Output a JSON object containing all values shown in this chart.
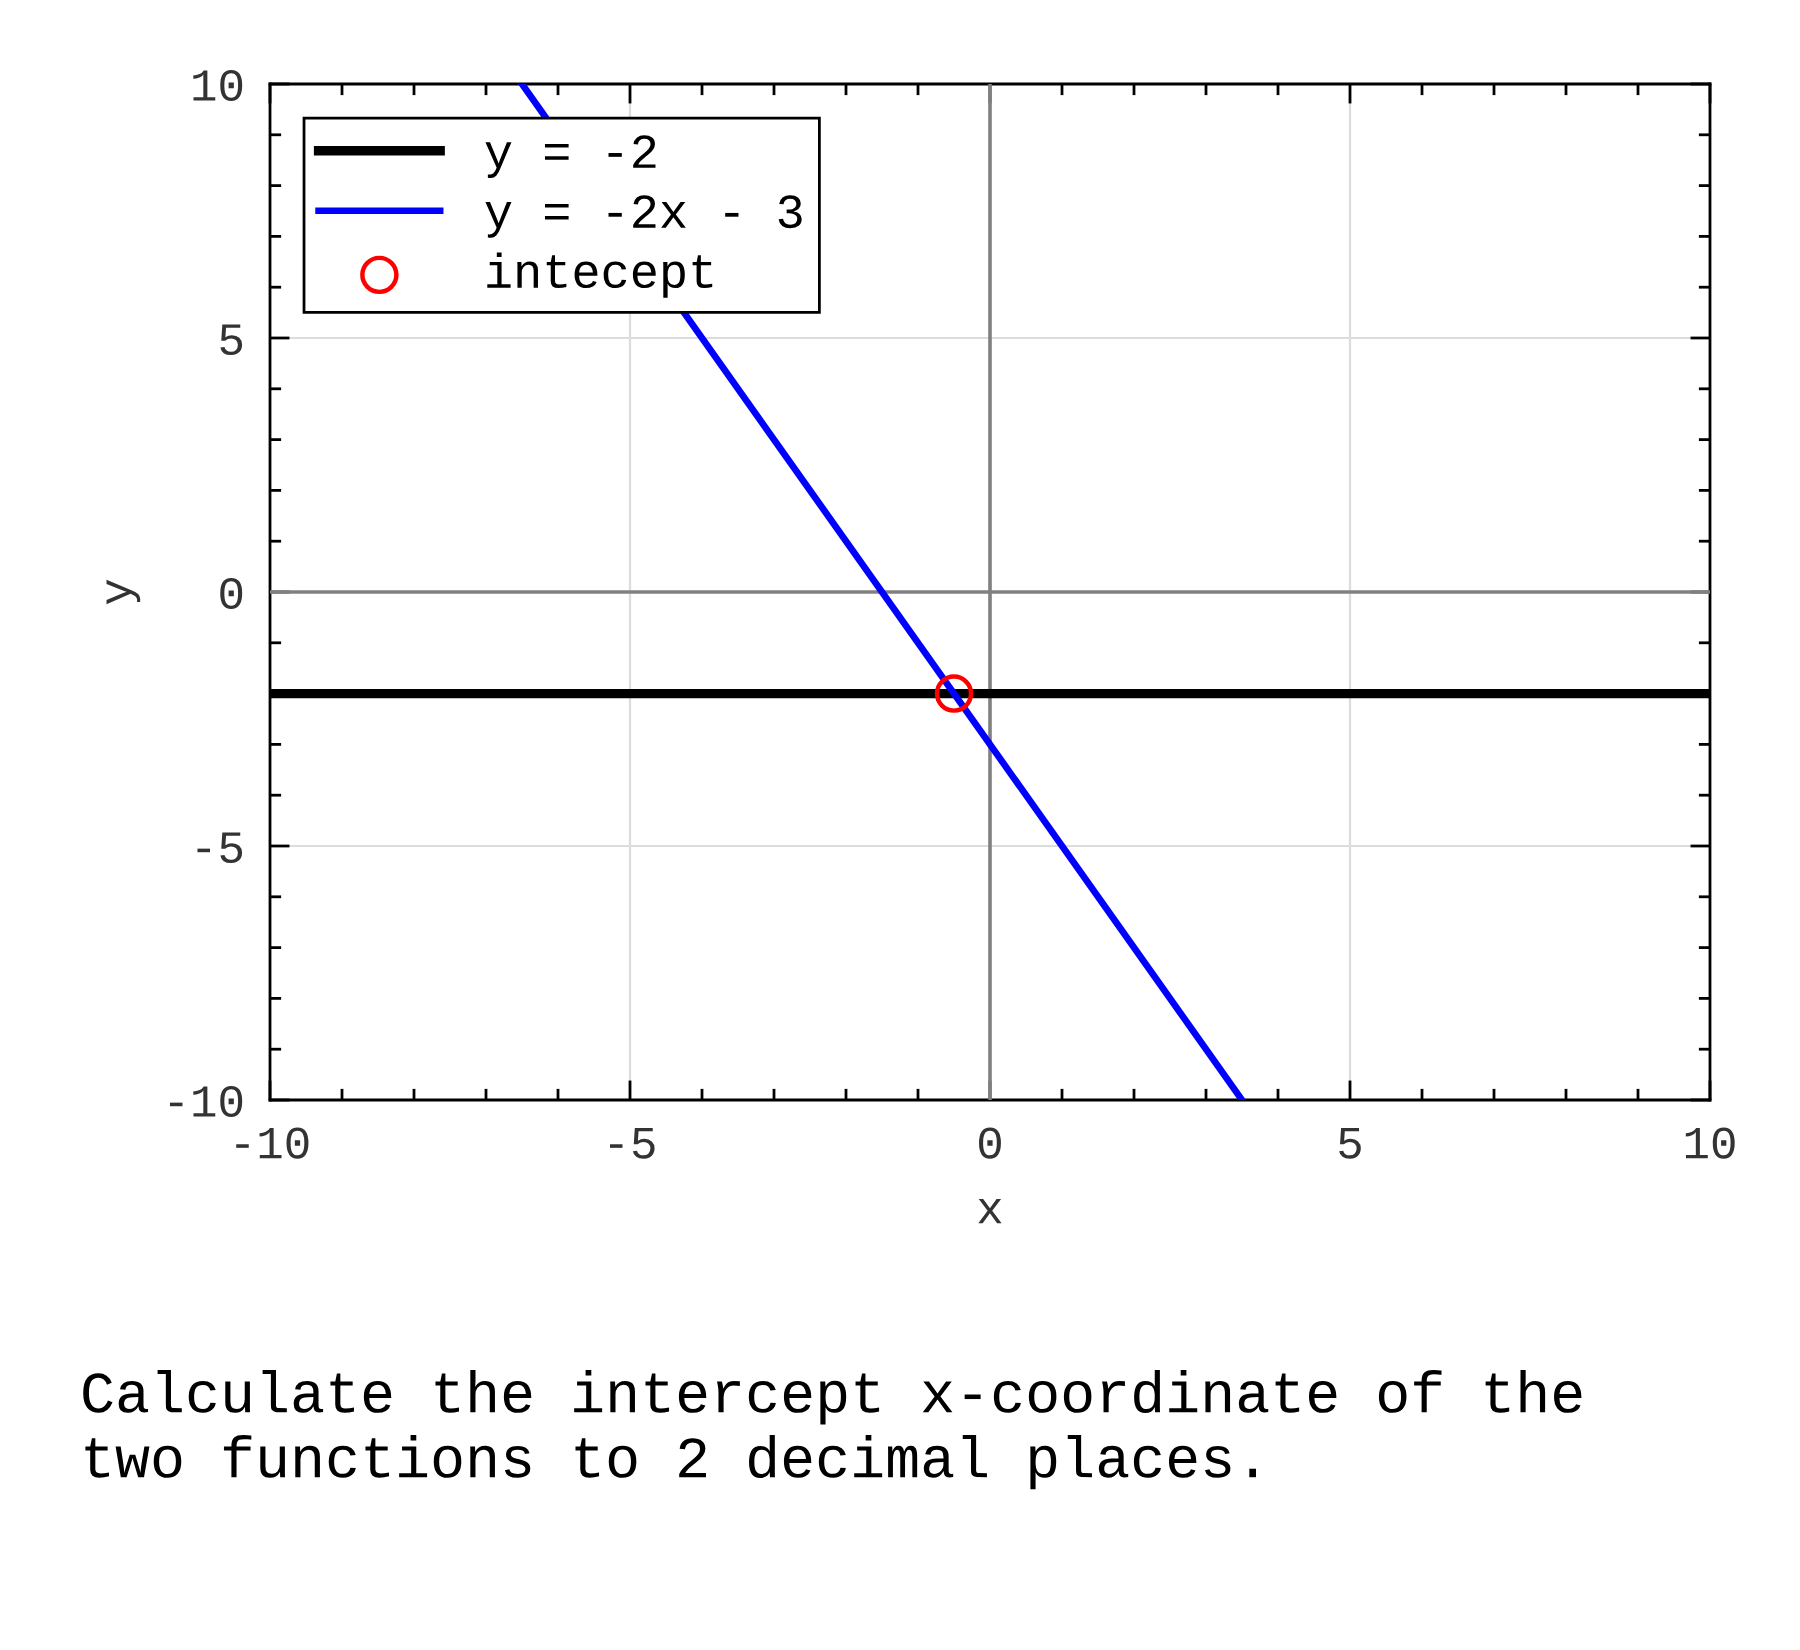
{
  "chart_data": {
    "type": "line",
    "xlabel": "x",
    "ylabel": "y",
    "xlim": [
      -10,
      10
    ],
    "ylim": [
      -10,
      10
    ],
    "xticks": [
      -10,
      -5,
      0,
      5,
      10
    ],
    "yticks": [
      -10,
      -5,
      0,
      5,
      10
    ],
    "grid": true,
    "legend": "top left",
    "series": [
      {
        "color": "#808080",
        "x": [
          -10,
          10
        ],
        "values": [
          0,
          0
        ]
      },
      {
        "color": "#808080",
        "x": [
          0,
          0
        ],
        "values": [
          -10,
          10
        ]
      },
      {
        "name": "y = -2",
        "color": "#000000",
        "x": [
          -10,
          10
        ],
        "values": [
          -2,
          -2
        ]
      },
      {
        "name": "y = -2x - 3",
        "color": "#0000ff",
        "x": [
          -6.5,
          3.5
        ],
        "values": [
          10,
          -10
        ]
      },
      {
        "name": "intecept",
        "type": "scatter",
        "marker": "circle",
        "color": "#ff0000",
        "x": [
          -0.5
        ],
        "values": [
          -2
        ]
      }
    ],
    "annotations": [
      "Calculate the intercept x-coordinate of the two functions to 2 decimal places."
    ]
  }
}
